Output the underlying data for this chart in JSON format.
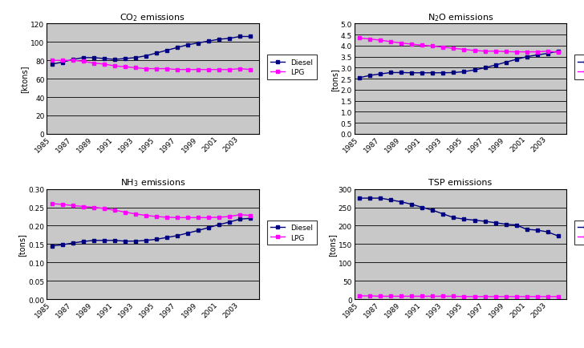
{
  "years": [
    1985,
    1986,
    1987,
    1988,
    1989,
    1990,
    1991,
    1992,
    1993,
    1994,
    1995,
    1996,
    1997,
    1998,
    1999,
    2000,
    2001,
    2002,
    2003,
    2004
  ],
  "co2_diesel": [
    76,
    78,
    81,
    83,
    83,
    82,
    81,
    82,
    83,
    85,
    88,
    91,
    94,
    97,
    99,
    101,
    103,
    104,
    106,
    106
  ],
  "co2_lpg": [
    80,
    80,
    80,
    79,
    77,
    76,
    74,
    73,
    72,
    71,
    71,
    71,
    70,
    70,
    70,
    70,
    70,
    70,
    71,
    70
  ],
  "n2o_diesel": [
    2.55,
    2.65,
    2.72,
    2.78,
    2.78,
    2.77,
    2.77,
    2.77,
    2.77,
    2.78,
    2.82,
    2.9,
    3.0,
    3.12,
    3.25,
    3.38,
    3.5,
    3.58,
    3.65,
    3.75
  ],
  "n2o_lpg": [
    4.35,
    4.3,
    4.25,
    4.18,
    4.12,
    4.07,
    4.02,
    3.98,
    3.93,
    3.88,
    3.83,
    3.78,
    3.75,
    3.75,
    3.73,
    3.72,
    3.72,
    3.72,
    3.75,
    3.7
  ],
  "nh3_diesel": [
    0.145,
    0.148,
    0.153,
    0.157,
    0.16,
    0.16,
    0.16,
    0.158,
    0.158,
    0.16,
    0.163,
    0.168,
    0.173,
    0.18,
    0.187,
    0.195,
    0.203,
    0.21,
    0.218,
    0.22
  ],
  "nh3_lpg": [
    0.26,
    0.258,
    0.255,
    0.252,
    0.25,
    0.247,
    0.242,
    0.237,
    0.232,
    0.228,
    0.225,
    0.223,
    0.222,
    0.222,
    0.222,
    0.222,
    0.223,
    0.225,
    0.23,
    0.228
  ],
  "tsp_diesel": [
    275,
    275,
    275,
    270,
    265,
    258,
    250,
    242,
    232,
    222,
    218,
    215,
    212,
    208,
    204,
    202,
    190,
    188,
    183,
    172
  ],
  "tsp_lpg": [
    9,
    9,
    8,
    8,
    8,
    8,
    8,
    8,
    8,
    8,
    7,
    7,
    7,
    7,
    7,
    7,
    7,
    7,
    7,
    7
  ],
  "diesel_color": "#000080",
  "lpg_color": "#FF00FF",
  "fig_bg": "#FFFFFF",
  "plot_bg": "#C8C8C8",
  "co2_title": "CO$_2$ emissions",
  "n2o_title": "N$_2$O emissions",
  "nh3_title": "NH$_3$ emissions",
  "tsp_title": "TSP emissions",
  "co2_ylabel": "[ktons]",
  "n2o_ylabel": "[tons]",
  "nh3_ylabel": "[tons]",
  "tsp_ylabel": "[tons]",
  "co2_ylim": [
    0,
    120
  ],
  "n2o_ylim": [
    0,
    5
  ],
  "nh3_ylim": [
    0,
    0.3
  ],
  "tsp_ylim": [
    0,
    300
  ],
  "co2_yticks": [
    0,
    20,
    40,
    60,
    80,
    100,
    120
  ],
  "n2o_yticks": [
    0,
    0.5,
    1.0,
    1.5,
    2.0,
    2.5,
    3.0,
    3.5,
    4.0,
    4.5,
    5.0
  ],
  "nh3_yticks": [
    0,
    0.05,
    0.1,
    0.15,
    0.2,
    0.25,
    0.3
  ],
  "tsp_yticks": [
    0,
    50,
    100,
    150,
    200,
    250,
    300
  ],
  "xtick_years": [
    1985,
    1987,
    1989,
    1991,
    1993,
    1995,
    1997,
    1999,
    2001,
    2003
  ]
}
